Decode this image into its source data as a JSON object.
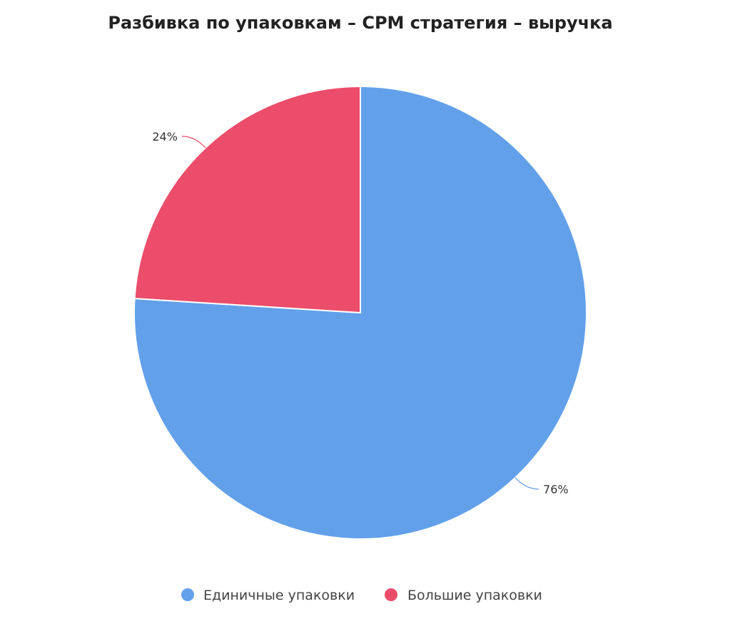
{
  "chart_data": {
    "type": "pie",
    "title": "Разбивка по упаковкам – CPM стратегия – выручка",
    "start_angle_deg": 0,
    "direction": "clockwise",
    "series": [
      {
        "name": "Единичные упаковки",
        "value": 76,
        "label": "76%",
        "color": "#62A0EA"
      },
      {
        "name": "Большие упаковки",
        "value": 24,
        "label": "24%",
        "color": "#EB4D6A"
      }
    ],
    "legend": {
      "position": "bottom-center"
    }
  }
}
